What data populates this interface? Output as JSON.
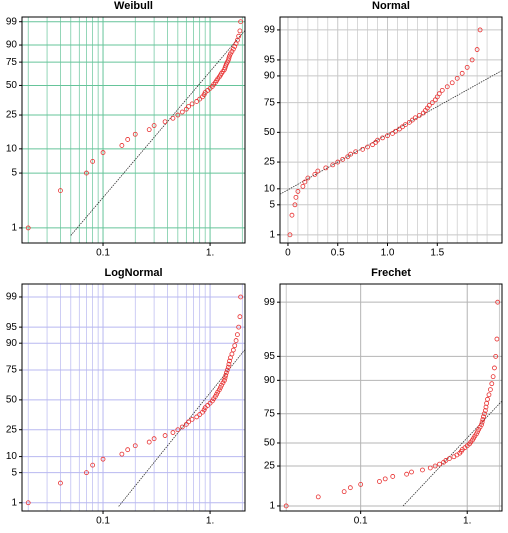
{
  "chart_data": [
    {
      "type": "scatter",
      "title": "Weibull",
      "xscale": "log",
      "yscale": "weibull",
      "xlim": [
        0.0175,
        2.12
      ],
      "ylim": [
        0.64,
        99.5
      ],
      "xticks": [
        0.1,
        {
          "value": 1,
          "label": "1."
        }
      ],
      "xminor": [
        0.02,
        0.03,
        0.04,
        0.05,
        0.06,
        0.07,
        0.08,
        0.09,
        0.2,
        0.3,
        0.4,
        0.5,
        0.6,
        0.7,
        0.8,
        0.9,
        2
      ],
      "yticks": [
        1,
        5,
        10,
        25,
        50,
        75,
        90,
        99
      ],
      "grid": true,
      "grid_color": "#66c49a",
      "series": [
        {
          "color": "#e83030",
          "x": [
            0.02,
            0.04,
            0.07,
            0.08,
            0.1,
            0.15,
            0.17,
            0.2,
            0.27,
            0.3,
            0.38,
            0.45,
            0.5,
            0.55,
            0.6,
            0.63,
            0.68,
            0.75,
            0.8,
            0.85,
            0.88,
            0.9,
            0.95,
            1.0,
            1.05,
            1.08,
            1.12,
            1.15,
            1.18,
            1.22,
            1.25,
            1.28,
            1.32,
            1.36,
            1.38,
            1.4,
            1.42,
            1.45,
            1.48,
            1.5,
            1.52,
            1.55,
            1.6,
            1.65,
            1.7,
            1.75,
            1.8,
            1.85,
            1.9,
            1.93
          ],
          "values": [
            1,
            3,
            5,
            7,
            9,
            11,
            13,
            15,
            17,
            19,
            21,
            23,
            25,
            27,
            29,
            31,
            33,
            35,
            37,
            39,
            41,
            43,
            45,
            47,
            49,
            51,
            53,
            55,
            57,
            59,
            61,
            63,
            65,
            67,
            69,
            71,
            73,
            75,
            77,
            79,
            81,
            83,
            85,
            87,
            89,
            91,
            93,
            95,
            97,
            99
          ]
        }
      ],
      "fit": {
        "color": "#333333",
        "x": [
          0.05,
          2.1
        ],
        "values": [
          0.8,
          97
        ]
      }
    },
    {
      "type": "scatter",
      "title": "Normal",
      "xscale": "linear",
      "yscale": "normal",
      "xlim": [
        -0.08,
        2.15
      ],
      "ylim": [
        0.6,
        99.56
      ],
      "xticks": [
        0,
        0.5,
        {
          "value": 1,
          "label": "1.0"
        },
        1.5
      ],
      "xminor": [
        0.1,
        0.2,
        0.3,
        0.4,
        0.6,
        0.7,
        0.8,
        0.9,
        1.1,
        1.2,
        1.3,
        1.4,
        1.6,
        1.7,
        1.8,
        1.9,
        2.0
      ],
      "yticks": [
        1,
        5,
        10,
        25,
        50,
        75,
        90,
        95,
        99
      ],
      "grid": true,
      "grid_color": "#c8c8c8",
      "series": [
        {
          "color": "#e83030",
          "x": [
            0.02,
            0.04,
            0.07,
            0.08,
            0.1,
            0.15,
            0.17,
            0.2,
            0.27,
            0.3,
            0.38,
            0.45,
            0.5,
            0.55,
            0.6,
            0.63,
            0.68,
            0.75,
            0.8,
            0.85,
            0.88,
            0.9,
            0.95,
            1.0,
            1.05,
            1.08,
            1.12,
            1.15,
            1.18,
            1.22,
            1.25,
            1.28,
            1.32,
            1.36,
            1.38,
            1.4,
            1.42,
            1.45,
            1.48,
            1.5,
            1.52,
            1.55,
            1.6,
            1.65,
            1.7,
            1.75,
            1.8,
            1.85,
            1.9,
            1.93
          ],
          "values": [
            1,
            3,
            5,
            7,
            9,
            11,
            13,
            15,
            17,
            19,
            21,
            23,
            25,
            27,
            29,
            31,
            33,
            35,
            37,
            39,
            41,
            43,
            45,
            47,
            49,
            51,
            53,
            55,
            57,
            59,
            61,
            63,
            65,
            67,
            69,
            71,
            73,
            75,
            77,
            79,
            81,
            83,
            85,
            87,
            89,
            91,
            93,
            95,
            97,
            99
          ]
        }
      ],
      "fit": {
        "color": "#333333",
        "x": [
          -0.08,
          2.15
        ],
        "values": [
          8,
          92
        ]
      }
    },
    {
      "type": "scatter",
      "title": "LogNormal",
      "xscale": "log",
      "yscale": "normal",
      "xlim": [
        0.0175,
        2.12
      ],
      "ylim": [
        0.6,
        99.56
      ],
      "xticks": [
        0.1,
        {
          "value": 1,
          "label": "1."
        }
      ],
      "xminor": [
        0.02,
        0.03,
        0.04,
        0.05,
        0.06,
        0.07,
        0.08,
        0.09,
        0.2,
        0.3,
        0.4,
        0.5,
        0.6,
        0.7,
        0.8,
        0.9,
        2
      ],
      "yticks": [
        1,
        5,
        10,
        25,
        50,
        75,
        90,
        95,
        99
      ],
      "grid": true,
      "grid_color": "#b8b8f0",
      "series": [
        {
          "color": "#e83030",
          "x": [
            0.02,
            0.04,
            0.07,
            0.08,
            0.1,
            0.15,
            0.17,
            0.2,
            0.27,
            0.3,
            0.38,
            0.45,
            0.5,
            0.55,
            0.6,
            0.63,
            0.68,
            0.75,
            0.8,
            0.85,
            0.88,
            0.9,
            0.95,
            1.0,
            1.05,
            1.08,
            1.12,
            1.15,
            1.18,
            1.22,
            1.25,
            1.28,
            1.32,
            1.36,
            1.38,
            1.4,
            1.42,
            1.45,
            1.48,
            1.5,
            1.52,
            1.55,
            1.6,
            1.65,
            1.7,
            1.75,
            1.8,
            1.85,
            1.9,
            1.93
          ],
          "values": [
            1,
            3,
            5,
            7,
            9,
            11,
            13,
            15,
            17,
            19,
            21,
            23,
            25,
            27,
            29,
            31,
            33,
            35,
            37,
            39,
            41,
            43,
            45,
            47,
            49,
            51,
            53,
            55,
            57,
            59,
            61,
            63,
            65,
            67,
            69,
            71,
            73,
            75,
            77,
            79,
            81,
            83,
            85,
            87,
            89,
            91,
            93,
            95,
            97,
            99
          ]
        }
      ],
      "fit": {
        "color": "#333333",
        "x": [
          0.14,
          2.1
        ],
        "values": [
          0.8,
          87
        ]
      }
    },
    {
      "type": "scatter",
      "title": "Frechet",
      "xscale": "log",
      "yscale": "frechet",
      "xlim": [
        0.0175,
        2.12
      ],
      "ylim": [
        0.47,
        99.42
      ],
      "xticks": [
        0.1,
        {
          "value": 1,
          "label": "1."
        }
      ],
      "xminor": [
        0.02,
        2
      ],
      "yticks": [
        1,
        25,
        50,
        75,
        90,
        95,
        99
      ],
      "grid": true,
      "grid_color": "#b4b4b4",
      "series": [
        {
          "color": "#e83030",
          "x": [
            0.02,
            0.04,
            0.07,
            0.08,
            0.1,
            0.15,
            0.17,
            0.2,
            0.27,
            0.3,
            0.38,
            0.45,
            0.5,
            0.55,
            0.6,
            0.63,
            0.68,
            0.75,
            0.8,
            0.85,
            0.88,
            0.9,
            0.95,
            1.0,
            1.05,
            1.08,
            1.12,
            1.15,
            1.18,
            1.22,
            1.25,
            1.28,
            1.32,
            1.36,
            1.38,
            1.4,
            1.42,
            1.45,
            1.48,
            1.5,
            1.52,
            1.55,
            1.6,
            1.65,
            1.7,
            1.75,
            1.8,
            1.85,
            1.9,
            1.93
          ],
          "values": [
            1,
            3,
            5,
            7,
            9,
            11,
            13,
            15,
            17,
            19,
            21,
            23,
            25,
            27,
            29,
            31,
            33,
            35,
            37,
            39,
            41,
            43,
            45,
            47,
            49,
            51,
            53,
            55,
            57,
            59,
            61,
            63,
            65,
            67,
            69,
            71,
            73,
            75,
            77,
            79,
            81,
            83,
            85,
            87,
            89,
            91,
            93,
            95,
            97,
            99
          ]
        }
      ],
      "fit": {
        "color": "#333333",
        "x": [
          0.25,
          2.1
        ],
        "values": [
          1,
          82
        ]
      }
    }
  ]
}
